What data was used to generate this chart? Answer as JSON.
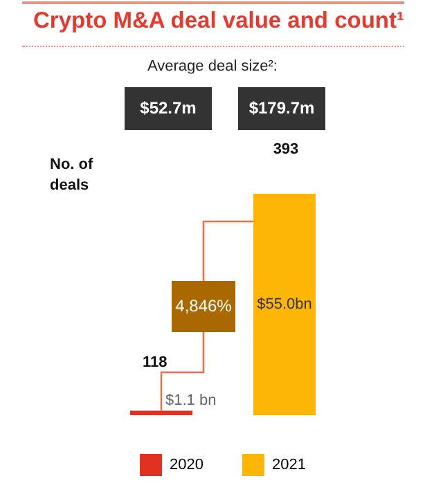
{
  "chart_data": {
    "type": "bar",
    "title": "Crypto M&A deal value and count¹",
    "categories": [
      null,
      null
    ],
    "series": [
      {
        "name": "2020",
        "color": "#e03121",
        "values": [
          1.1,
          null
        ],
        "value_labels": [
          "$1.1 bn",
          null
        ]
      },
      {
        "name": "2021",
        "color": "#fdb606",
        "values": [
          null,
          55.0
        ],
        "value_labels": [
          null,
          "$55.0bn"
        ]
      }
    ],
    "stacked": true,
    "annotations": [
      "Average deal size²:",
      "$52.7m",
      "$179.7m",
      "No. of deals",
      "118",
      "393",
      "4,846%"
    ],
    "legend": "bottom",
    "tick_labels": false
  }
}
